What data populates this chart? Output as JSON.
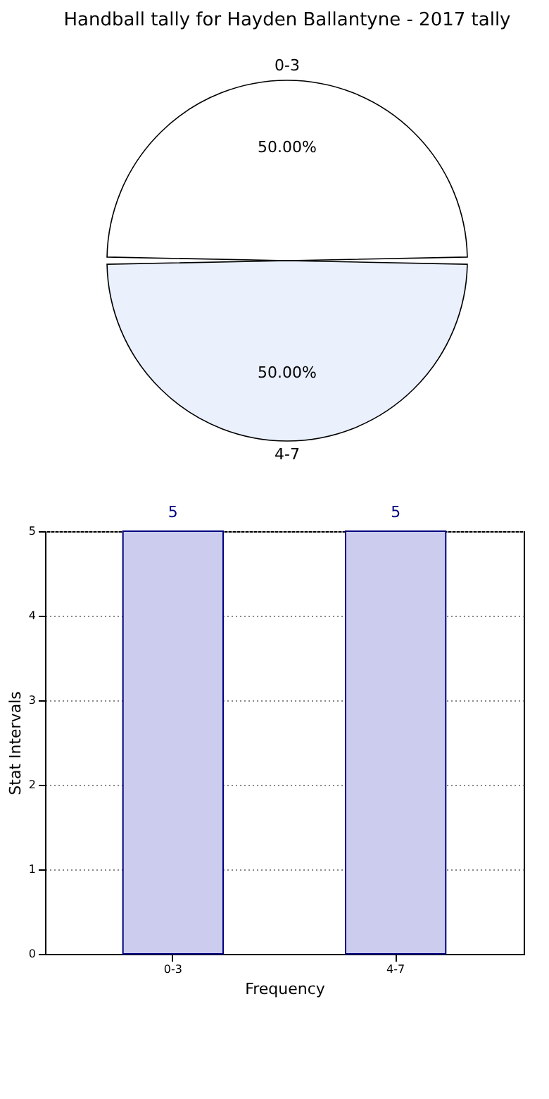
{
  "chart_data": [
    {
      "type": "pie",
      "title": "Handball tally for Hayden Ballantyne - 2017 tally",
      "categories": [
        "0-3",
        "4-7"
      ],
      "values": [
        50,
        50
      ],
      "colors": [
        "#ffffff",
        "#eaf0fc"
      ],
      "value_labels": [
        "50.00%",
        "50.00%"
      ]
    },
    {
      "type": "bar",
      "categories": [
        "0-3",
        "4-7"
      ],
      "values": [
        5,
        5
      ],
      "color": "#ccccee",
      "xlabel": "Frequency",
      "ylabel": "Stat Intervals",
      "ylim": [
        0,
        5
      ],
      "yticks": [
        0,
        1,
        2,
        3,
        4,
        5
      ],
      "grid": true,
      "data_labels": true
    }
  ]
}
